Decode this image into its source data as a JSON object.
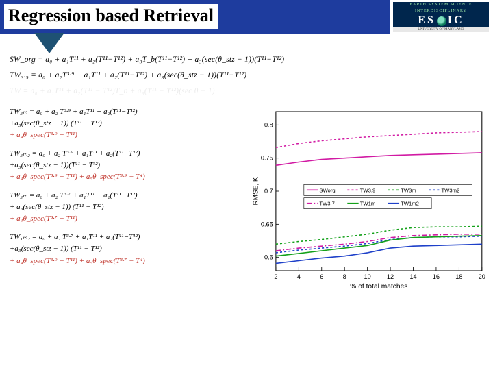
{
  "header": {
    "title": "Regression based Retrieval",
    "bar_color": "#1e3c9e",
    "triangle_color": "#1e5173",
    "logo": {
      "line1": "EARTH SYSTEM SCIENCE",
      "line2": "INTERDISCIPLINARY",
      "brand_left": "ES",
      "brand_right": "IC",
      "line3": "UNIVERSITY OF MARYLAND"
    }
  },
  "equations": {
    "top": [
      "SW_org = a₀ + a₁T¹¹ + a₂(T¹¹−T¹²) + a₃T_b(T¹¹−T¹²) + a₃(sec(θ_stz − 1))(T¹¹−T¹²)",
      "TW₃.₉ = a₀ + a₂T³·⁹ + a₁T¹¹ + a₂(T¹¹−T¹²) + a₃(sec(θ_stz − 1))(T¹¹−T¹²)",
      "TW = a₀ + a₁T¹¹ + a₂(T¹¹ − T¹²)T_b + a₃(T¹¹ − T¹²)(sec θ − 1)"
    ],
    "left": [
      {
        "main": "TW₃ₘ = a₀ + a₂ T³·⁹ + a₁T¹¹ + a₂(T¹¹−T¹²)\n+a₃(sec(θ_stz − 1)) (T¹¹ − T¹²)",
        "red": "+ a₄θ_spec(T³·⁹ − T¹¹)"
      },
      {
        "main": "TW₃ₘ₂ = a₀ + a₂ T³·⁹ + a₁T¹¹ + a₂(T¹¹−T¹²)\n+a₃(sec(θ_stz − 1))(T¹¹ − T¹²)",
        "red": "+ a₄θ_spec(T³·⁹ − T¹¹) + a₅θ_spec(T³·⁹ − T⁴)"
      },
      {
        "main": "TW₃ₘ = a₀ + a₂ T³·⁷ + a₁T¹¹ + a₂(T¹¹−T¹²)\n+ a₃(sec(θ_stz − 1)) (T¹¹ − T¹²)",
        "red": "+ a₄θ_spec(T³·⁷ − T¹¹)"
      },
      {
        "main": "TW₁ₘ₂ = a₀ + a₂ T³·⁷ + a₁T¹¹ + a₂(T¹¹−T¹²)\n+a₃(sec(θ_stz − 1)) (T¹¹ − T¹²)",
        "red": "+ a₄θ_spec(T³·⁹ − T¹¹) + a₅θ_spec(T³·⁷ − T⁴)"
      }
    ]
  },
  "chart": {
    "type": "line",
    "xlabel": "% of total matches",
    "ylabel": "RMSE, K",
    "xlim": [
      2,
      20
    ],
    "ylim": [
      0.58,
      0.82
    ],
    "xtick_step": 2,
    "yticks": [
      0.6,
      0.65,
      0.7,
      0.75,
      0.8
    ],
    "background_color": "#ffffff",
    "frame_color": "#000000",
    "label_fontsize": 10,
    "tick_fontsize": 9,
    "series": [
      {
        "name": "SW_org",
        "color": "#d11aa3",
        "dash": "",
        "y": [
          0.739,
          0.744,
          0.748,
          0.75,
          0.752,
          0.754,
          0.755,
          0.756,
          0.757,
          0.758
        ]
      },
      {
        "name": "TW_3.9",
        "color": "#d11aa3",
        "dash": "3 3",
        "y": [
          0.766,
          0.772,
          0.776,
          0.779,
          0.782,
          0.784,
          0.786,
          0.788,
          0.789,
          0.79
        ]
      },
      {
        "name": "TW_3m",
        "color": "#14a11a",
        "dash": "3 3",
        "y": [
          0.62,
          0.624,
          0.627,
          0.631,
          0.635,
          0.641,
          0.645,
          0.646,
          0.646,
          0.647
        ]
      },
      {
        "name": "TW_3m2",
        "color": "#1e40c9",
        "dash": "3 3",
        "y": [
          0.607,
          0.611,
          0.614,
          0.617,
          0.621,
          0.627,
          0.63,
          0.631,
          0.631,
          0.632
        ]
      },
      {
        "name": "TW_3.7",
        "color": "#d11aa3",
        "dash": "7 3 2 3",
        "y": [
          0.61,
          0.614,
          0.617,
          0.62,
          0.624,
          0.63,
          0.633,
          0.634,
          0.635,
          0.635
        ]
      },
      {
        "name": "TW_1m",
        "color": "#14a11a",
        "dash": "",
        "y": [
          0.602,
          0.606,
          0.61,
          0.614,
          0.618,
          0.626,
          0.63,
          0.631,
          0.632,
          0.633
        ]
      },
      {
        "name": "TW_1m2",
        "color": "#1e40c9",
        "dash": "",
        "y": [
          0.591,
          0.595,
          0.599,
          0.602,
          0.607,
          0.614,
          0.617,
          0.618,
          0.619,
          0.62
        ]
      }
    ],
    "x": [
      2,
      4,
      6,
      8,
      10,
      12,
      14,
      16,
      18,
      20
    ],
    "legend_groups": [
      [
        "SW_org",
        "TW_3.9",
        "TW_3m",
        "TW_3m2"
      ],
      [
        "TW_3.7",
        "TW_1m",
        "TW_1m2"
      ]
    ]
  }
}
